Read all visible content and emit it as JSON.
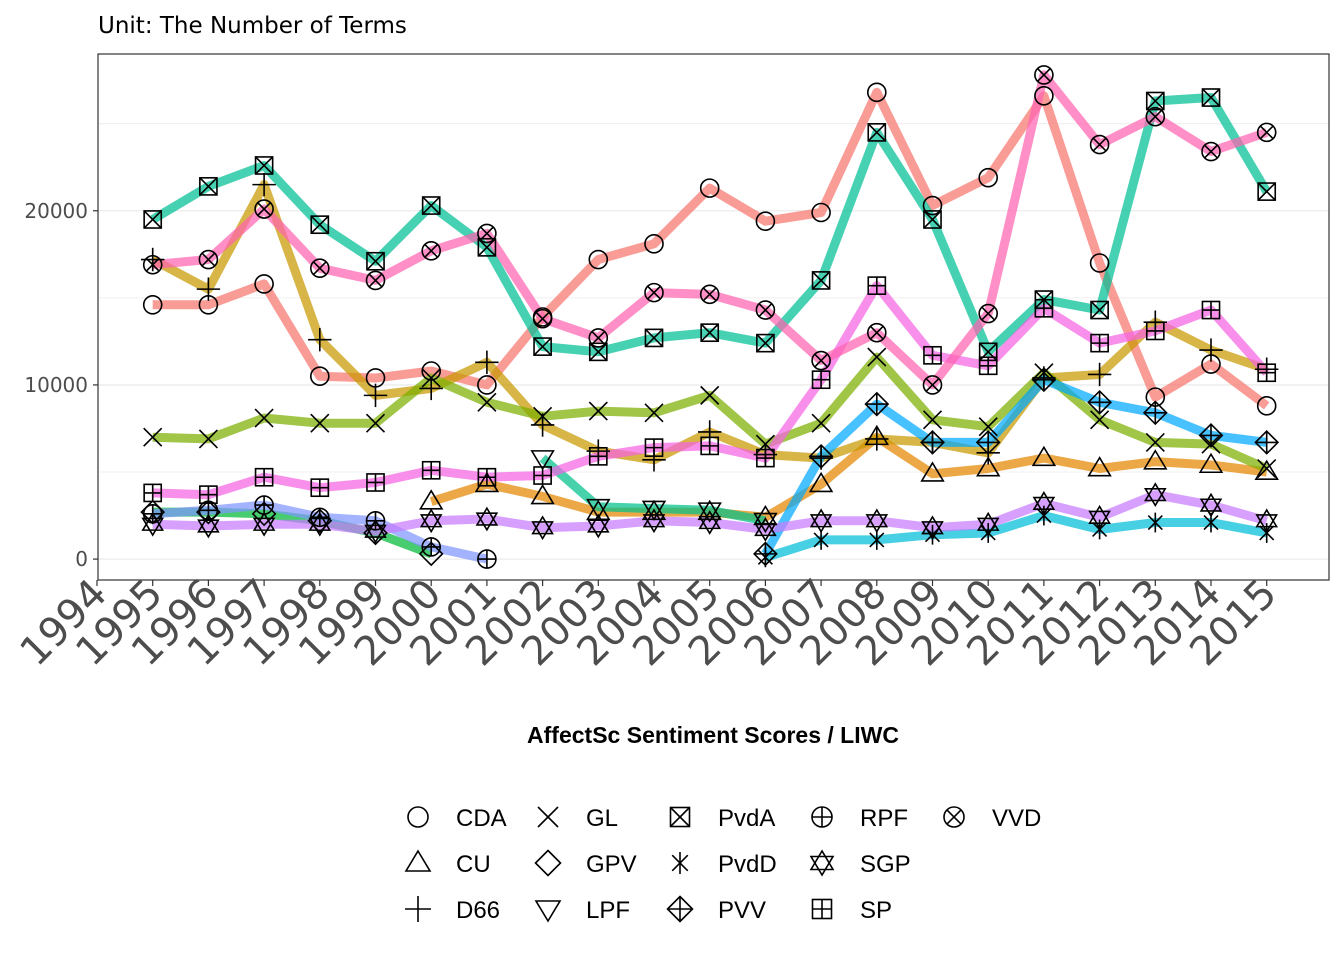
{
  "chart_data": {
    "type": "line",
    "subtitle": "Unit: The Number of Terms",
    "xlabel": "AffectSc Sentiment Scores / LIWC",
    "ylabel": "",
    "xlim": [
      1994,
      2015
    ],
    "ylim": [
      -1200,
      29000
    ],
    "x_ticks": [
      1994,
      1995,
      1996,
      1997,
      1998,
      1999,
      2000,
      2001,
      2002,
      2003,
      2004,
      2005,
      2006,
      2007,
      2008,
      2009,
      2010,
      2011,
      2012,
      2013,
      2014,
      2015
    ],
    "y_ticks": [
      0,
      10000,
      20000
    ],
    "y_tick_labels": [
      "0",
      "10000",
      "20000"
    ],
    "grid": true,
    "legend_position": "bottom",
    "series": [
      {
        "name": "CDA",
        "shape": "circle",
        "color": "#F8766D",
        "x": [
          1995,
          1996,
          1997,
          1998,
          1999,
          2000,
          2001,
          2002,
          2003,
          2004,
          2005,
          2006,
          2007,
          2008,
          2009,
          2010,
          2011,
          2012,
          2013,
          2014,
          2015
        ],
        "y": [
          14600,
          14600,
          15800,
          10500,
          10400,
          10800,
          10000,
          13900,
          17200,
          18100,
          21300,
          19400,
          19900,
          26800,
          20300,
          21900,
          26600,
          17000,
          9300,
          11200,
          8800
        ]
      },
      {
        "name": "CU",
        "shape": "triangle",
        "color": "#E58700",
        "x": [
          2000,
          2001,
          2002,
          2003,
          2004,
          2005,
          2006,
          2007,
          2008,
          2009,
          2010,
          2011,
          2012,
          2013,
          2014,
          2015
        ],
        "y": [
          3300,
          4300,
          3600,
          2700,
          2700,
          2700,
          2400,
          4300,
          7000,
          4900,
          5200,
          5800,
          5200,
          5600,
          5400,
          5000
        ]
      },
      {
        "name": "D66",
        "shape": "plus",
        "color": "#C99800",
        "x": [
          1995,
          1996,
          1997,
          1998,
          1999,
          2000,
          2001,
          2002,
          2003,
          2004,
          2005,
          2006,
          2007,
          2008,
          2009,
          2010,
          2011,
          2012,
          2013,
          2014,
          2015
        ],
        "y": [
          17200,
          15500,
          21500,
          12600,
          9400,
          9800,
          11300,
          7700,
          6200,
          5700,
          7300,
          6000,
          5800,
          6900,
          6700,
          6100,
          10400,
          10600,
          13600,
          12000,
          10900
        ]
      },
      {
        "name": "GL",
        "shape": "cross",
        "color": "#7CAE00",
        "x": [
          1995,
          1996,
          1997,
          1998,
          1999,
          2000,
          2001,
          2002,
          2003,
          2004,
          2005,
          2006,
          2007,
          2008,
          2009,
          2010,
          2011,
          2012,
          2013,
          2014,
          2015
        ],
        "y": [
          7000,
          6900,
          8100,
          7800,
          7800,
          10400,
          9000,
          8200,
          8500,
          8400,
          9400,
          6600,
          7800,
          11600,
          8000,
          7600,
          10700,
          8000,
          6700,
          6600,
          5200
        ]
      },
      {
        "name": "GPV",
        "shape": "diamond",
        "color": "#00BA38",
        "x": [
          1995,
          1996,
          1997,
          1998,
          1999,
          2000
        ],
        "y": [
          2700,
          2700,
          2600,
          2200,
          1500,
          300
        ]
      },
      {
        "name": "LPF",
        "shape": "triangle-down",
        "color": "#00C08B",
        "x": [
          2002,
          2003,
          2004,
          2005,
          2006
        ],
        "y": [
          5800,
          3000,
          2900,
          2800,
          2200
        ]
      },
      {
        "name": "PvdA",
        "shape": "square-cross",
        "color": "#00BF96",
        "x": [
          1995,
          1996,
          1997,
          1998,
          1999,
          2000,
          2001,
          2002,
          2003,
          2004,
          2005,
          2006,
          2007,
          2008,
          2009,
          2010,
          2011,
          2012,
          2013,
          2014,
          2015
        ],
        "y": [
          19500,
          21400,
          22600,
          19200,
          17100,
          20300,
          17900,
          12200,
          11900,
          12700,
          13000,
          12400,
          16000,
          24500,
          19500,
          11900,
          14900,
          14300,
          26300,
          26500,
          21100
        ]
      },
      {
        "name": "PvdD",
        "shape": "asterisk",
        "color": "#00BCD8",
        "x": [
          2006,
          2007,
          2008,
          2009,
          2010,
          2011,
          2012,
          2013,
          2014,
          2015
        ],
        "y": [
          100,
          1100,
          1100,
          1400,
          1500,
          2500,
          1700,
          2100,
          2100,
          1500
        ]
      },
      {
        "name": "PVV",
        "shape": "diamond-plus",
        "color": "#00A9FF",
        "x": [
          2006,
          2007,
          2008,
          2009,
          2010,
          2011,
          2012,
          2013,
          2014,
          2015
        ],
        "y": [
          300,
          5900,
          8900,
          6700,
          6700,
          10300,
          9000,
          8400,
          7100,
          6700
        ]
      },
      {
        "name": "RPF",
        "shape": "circle-plus",
        "color": "#7F96FF",
        "x": [
          1995,
          1996,
          1997,
          1998,
          1999,
          2000,
          2001
        ],
        "y": [
          2600,
          2800,
          3100,
          2400,
          2200,
          700,
          0
        ]
      },
      {
        "name": "SGP",
        "shape": "star-of-david",
        "color": "#C77CFF",
        "x": [
          1995,
          1996,
          1997,
          1998,
          1999,
          2000,
          2001,
          2002,
          2003,
          2004,
          2005,
          2006,
          2007,
          2008,
          2009,
          2010,
          2011,
          2012,
          2013,
          2014,
          2015
        ],
        "y": [
          2000,
          1900,
          2000,
          2000,
          1600,
          2200,
          2300,
          1800,
          1900,
          2200,
          2100,
          1700,
          2200,
          2200,
          1800,
          2000,
          3200,
          2400,
          3700,
          3100,
          2200
        ]
      },
      {
        "name": "SP",
        "shape": "square-plus",
        "color": "#F564E3",
        "x": [
          1995,
          1996,
          1997,
          1998,
          1999,
          2000,
          2001,
          2002,
          2003,
          2004,
          2005,
          2006,
          2007,
          2008,
          2009,
          2010,
          2011,
          2012,
          2013,
          2014,
          2015
        ],
        "y": [
          3800,
          3700,
          4700,
          4100,
          4400,
          5100,
          4700,
          4800,
          5900,
          6400,
          6500,
          5800,
          10300,
          15700,
          11700,
          11100,
          14400,
          12400,
          13100,
          14300,
          10700
        ]
      },
      {
        "name": "VVD",
        "shape": "circle-cross",
        "color": "#FF64B0",
        "x": [
          1995,
          1996,
          1997,
          1998,
          1999,
          2000,
          2001,
          2002,
          2003,
          2004,
          2005,
          2006,
          2007,
          2008,
          2009,
          2010,
          2011,
          2012,
          2013,
          2014,
          2015
        ],
        "y": [
          16900,
          17200,
          20100,
          16700,
          16000,
          17700,
          18700,
          13800,
          12700,
          15300,
          15200,
          14300,
          11400,
          13000,
          10000,
          14100,
          27800,
          23800,
          25400,
          23400,
          24500
        ]
      }
    ]
  }
}
